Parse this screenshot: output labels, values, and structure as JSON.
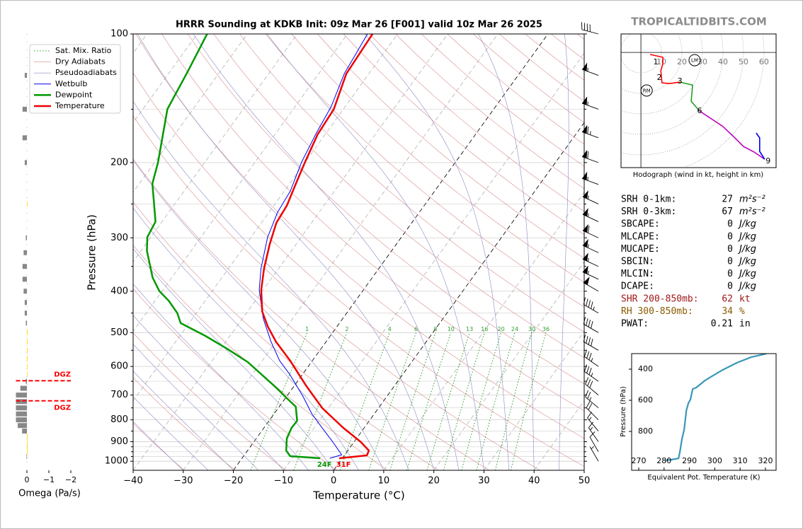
{
  "watermark": "TROPICALTIDBITS.COM",
  "chart_data": [
    {
      "type": "skewt",
      "title": "HRRR Sounding at KDKB Init: 09z Mar 26 [F001] valid 10z Mar 26 2025",
      "xlabel": "Temperature (°C)",
      "ylabel": "Pressure (hPa)",
      "xlim": [
        -40,
        50
      ],
      "ylim": [
        1050,
        100
      ],
      "log_y": true,
      "grid": true,
      "legend": "upper left",
      "xticks": [
        {
          "value": -40,
          "label": "−40"
        },
        {
          "value": -30,
          "label": "−30"
        },
        {
          "value": -20,
          "label": "−20"
        },
        {
          "value": -10,
          "label": "−10"
        },
        0,
        10,
        20,
        30,
        40,
        50
      ],
      "yticks": [
        100,
        200,
        300,
        400,
        500,
        600,
        700,
        800,
        900,
        1000
      ],
      "yminor": [
        150,
        250,
        350,
        450,
        550,
        650,
        750,
        850,
        925,
        950,
        975
      ],
      "highlight_isotherms": [
        0,
        -20
      ],
      "reference_lines": [
        {
          "name": "Sat. Mix. Ratio",
          "color": "#2e9e2e",
          "style": "dotted"
        },
        {
          "name": "Dry Adiabats",
          "color": "#d98a8a",
          "style": "solid"
        },
        {
          "name": "Pseudoadiabats",
          "color": "#8a8ac4",
          "style": "solid"
        }
      ],
      "mixing_ratios": [
        1,
        2,
        4,
        6,
        8,
        10,
        13,
        16,
        20,
        24,
        30,
        36
      ],
      "series": [
        {
          "name": "Wetbulb",
          "color": "#0000ee",
          "width": 1,
          "pressure": [
            984,
            966,
            902,
            835,
            774,
            704,
            628,
            582,
            525,
            463,
            397,
            354,
            299,
            261,
            233,
            200,
            172,
            148,
            124,
            100
          ],
          "values": [
            -2.5,
            -0.6,
            -4.2,
            -8.4,
            -12.5,
            -16.8,
            -22.4,
            -26.5,
            -31,
            -35.9,
            -40.8,
            -43.5,
            -46.7,
            -48.3,
            -48.8,
            -50.7,
            -51.9,
            -52.8,
            -54.9,
            -56
          ]
        },
        {
          "name": "Dewpoint",
          "color": "#009900",
          "width": 2.5,
          "surface_label": "24F",
          "pressure": [
            984,
            973,
            944,
            885,
            835,
            804,
            745,
            712,
            672,
            628,
            586,
            545,
            509,
            475,
            450,
            421,
            400,
            372,
            322,
            299,
            275,
            224,
            200,
            150,
            122,
            100
          ],
          "values": [
            -4.4,
            -10.7,
            -12.3,
            -13.9,
            -14.5,
            -14.4,
            -16.7,
            -19.7,
            -23.4,
            -28,
            -32.7,
            -38.8,
            -44.9,
            -51.7,
            -53.8,
            -57.3,
            -60.5,
            -63.8,
            -68.8,
            -70.7,
            -71.3,
            -77.4,
            -79.3,
            -85.1,
            -86.5,
            -88
          ]
        },
        {
          "name": "Temperature",
          "color": "#ee0000",
          "width": 2.5,
          "surface_label": "31F",
          "pressure": [
            984,
            969,
            944,
            902,
            835,
            751,
            665,
            582,
            525,
            484,
            446,
            397,
            354,
            310,
            277,
            252,
            223,
            200,
            172,
            150,
            124,
            100
          ],
          "values": [
            -0.6,
            4.5,
            4.2,
            1.4,
            -4.2,
            -11.2,
            -17.7,
            -24.4,
            -30,
            -33.8,
            -37.1,
            -40.4,
            -42.9,
            -45.3,
            -47,
            -47.4,
            -48.8,
            -50,
            -51.5,
            -51.9,
            -54.5,
            -55
          ]
        }
      ],
      "wind_barbs": {
        "pressure": [
          100,
          125,
          150,
          175,
          200,
          225,
          250,
          275,
          300,
          325,
          350,
          375,
          400,
          450,
          500,
          550,
          600,
          650,
          700,
          750,
          800,
          850,
          900,
          950,
          1000
        ],
        "speed": [
          40,
          55,
          55,
          65,
          60,
          55,
          55,
          55,
          60,
          55,
          55,
          55,
          50,
          45,
          40,
          40,
          35,
          35,
          30,
          25,
          20,
          15,
          15,
          10,
          5
        ],
        "direction": [
          285,
          290,
          290,
          290,
          290,
          290,
          295,
          295,
          295,
          295,
          295,
          295,
          300,
          300,
          300,
          300,
          305,
          305,
          310,
          310,
          315,
          320,
          325,
          330,
          330
        ]
      }
    },
    {
      "type": "omega",
      "xlabel": "Omega (Pa/s)",
      "xlim": [
        0.5,
        -2.5
      ],
      "xticks": [
        0,
        {
          "value": -1,
          "label": "−1"
        },
        {
          "value": -2,
          "label": "−2"
        }
      ],
      "dgz": {
        "label": "DGZ",
        "top": 648,
        "bottom": 722,
        "color": "#ff0000"
      },
      "pressure": [
        125,
        150,
        175,
        200,
        250,
        300,
        325,
        350,
        375,
        400,
        425,
        450,
        475,
        500,
        525,
        550,
        575,
        600,
        625,
        650,
        675,
        700,
        725,
        750,
        775,
        800,
        825,
        850,
        875,
        900,
        925,
        950,
        975
      ],
      "values": [
        0.1,
        0.2,
        0.2,
        0.1,
        -0.02,
        0.05,
        0.15,
        0.2,
        0.2,
        0.15,
        0.1,
        0.1,
        0.05,
        -0.03,
        -0.03,
        -0.03,
        -0.03,
        -0.02,
        -0.02,
        0.05,
        0.3,
        0.5,
        0.5,
        0.5,
        0.5,
        0.5,
        0.42,
        0.22,
        -0.02,
        -0.02,
        -0.03,
        -0.02,
        0.02
      ]
    },
    {
      "type": "hodograph",
      "caption": "Hodograph (wind in kt, height in km)",
      "ulim": [
        -9.7,
        65.9
      ],
      "vlim": [
        -56.2,
        9
      ],
      "rings": [
        10,
        20,
        30,
        40,
        50,
        60
      ],
      "segments": [
        {
          "color": "#ff0000",
          "u": [
            4.5,
            10.7,
            10.7,
            9.7,
            10.3,
            13.8,
            19.0
          ],
          "v": [
            -1.0,
            -2.4,
            -5.5,
            -9.0,
            -14.8,
            -15.2,
            -14.5
          ]
        },
        {
          "color": "#22a022",
          "u": [
            19.0,
            25.2,
            24.5,
            28.6
          ],
          "v": [
            -14.5,
            -15.9,
            -23.8,
            -28.6
          ]
        },
        {
          "color": "#bb00bb",
          "u": [
            28.6,
            39.7,
            44.8,
            50.0,
            55.2,
            60.3
          ],
          "v": [
            -28.6,
            -35.9,
            -40.7,
            -45.9,
            -48.6,
            -52.1
          ]
        },
        {
          "color": "#0000ee",
          "u": [
            60.3,
            57.9,
            57.9,
            56.2
          ],
          "v": [
            -52.1,
            -48.3,
            -41.7,
            -39.3
          ]
        }
      ],
      "height_labels": [
        {
          "label": "1",
          "u": 7.2,
          "v": -4.8
        },
        {
          "label": "2",
          "u": 9.0,
          "v": -12.4
        },
        {
          "label": "3",
          "u": 19.0,
          "v": -14.1
        },
        {
          "label": "6",
          "u": 28.6,
          "v": -28.6
        },
        {
          "label": "9",
          "u": 62.0,
          "v": -53.1
        }
      ],
      "storm_motion": [
        {
          "label": "RM",
          "u": 2.8,
          "v": -18.6
        },
        {
          "label": "LM",
          "u": 26.2,
          "v": -3.8
        }
      ]
    },
    {
      "type": "line",
      "xlabel": "Equivalent Pot. Temperature (K)",
      "ylabel": "Pressure (hPa)",
      "color": "#3a96b8",
      "xlim": [
        267.2,
        324.2
      ],
      "ylim": [
        1050,
        300
      ],
      "xticks": [
        270,
        280,
        290,
        300,
        310,
        320
      ],
      "yticks": [
        400,
        600,
        800
      ],
      "y": [
        986,
        982,
        973,
        936,
        845,
        791,
        709,
        664,
        618,
        595,
        527,
        518,
        473,
        445,
        405,
        359,
        323,
        300
      ],
      "values": [
        280.6,
        282.9,
        285.7,
        286.2,
        287.1,
        287.9,
        288.5,
        288.8,
        289.6,
        290.4,
        291.3,
        292.7,
        296.1,
        298.9,
        303.1,
        308.7,
        314.3,
        320.4
      ]
    }
  ],
  "stats": [
    {
      "label": "SRH 0-1km:",
      "value": "27",
      "unit": "m²s⁻²"
    },
    {
      "label": "SRH 0-3km:",
      "value": "67",
      "unit": "m²s⁻²"
    },
    {
      "label": "SBCAPE:",
      "value": "0",
      "unit": "J/kg"
    },
    {
      "label": "MLCAPE:",
      "value": "0",
      "unit": "J/kg"
    },
    {
      "label": "MUCAPE:",
      "value": "0",
      "unit": "J/kg"
    },
    {
      "label": "SBCIN:",
      "value": "0",
      "unit": "J/kg"
    },
    {
      "label": "MLCIN:",
      "value": "0",
      "unit": "J/kg"
    },
    {
      "label": "DCAPE:",
      "value": "0",
      "unit": "J/kg"
    },
    {
      "label": "SHR 200-850mb:",
      "value": "62",
      "unit": "kt",
      "color": "#a01818"
    },
    {
      "label": "RH 300-850mb:",
      "value": "34",
      "unit": "%",
      "color": "#8b5a00"
    },
    {
      "label": "PWAT:",
      "value": "0.21",
      "unit": "in"
    }
  ]
}
